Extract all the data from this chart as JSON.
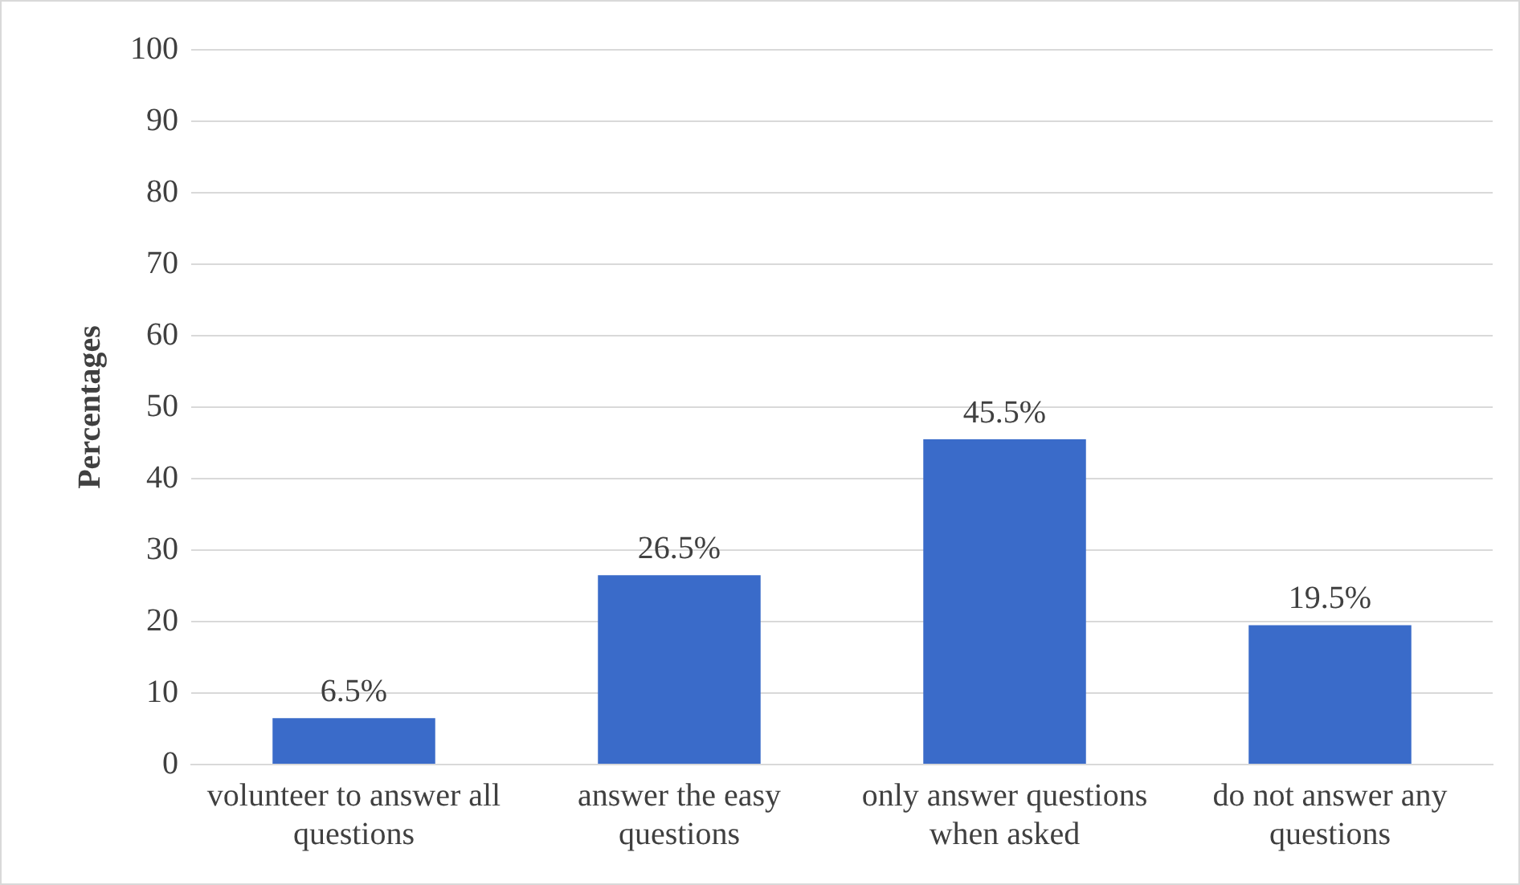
{
  "chart_data": {
    "type": "bar",
    "ylabel": "Percentages",
    "categories": [
      "volunteer to answer all questions",
      "answer the easy questions",
      "only answer questions when asked",
      "do not answer any questions"
    ],
    "values": [
      6.5,
      26.5,
      45.5,
      19.5
    ],
    "value_labels": [
      "6.5%",
      "26.5%",
      "45.5%",
      "19.5%"
    ],
    "color": "#3a6bc9",
    "ylim": [
      0,
      100
    ],
    "yticks": [
      0,
      10,
      20,
      30,
      40,
      50,
      60,
      70,
      80,
      90,
      100
    ],
    "grid": "y",
    "legend": false
  }
}
